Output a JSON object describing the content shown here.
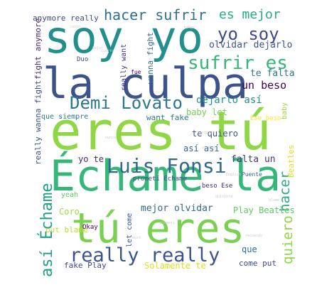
{
  "word_cloud": {
    "words": [
      {
        "text": "soy yo",
        "color": "#21908d"
      },
      {
        "text": "la culpa",
        "color": "#3b528b"
      },
      {
        "text": "eres tú",
        "color": "#8fd744"
      },
      {
        "text": "Échame la",
        "color": "#35b779"
      },
      {
        "text": "tú eres",
        "color": "#7ad151"
      },
      {
        "text": "Luis Fonsi",
        "color": "#31688e"
      },
      {
        "text": "Demi Lovato",
        "color": "#2a788e"
      },
      {
        "text": "really really",
        "color": "#3b528b"
      },
      {
        "text": "hacer sufrir",
        "color": "#2d708e"
      },
      {
        "text": "es mejor",
        "color": "#25ab82"
      },
      {
        "text": "yo soy",
        "color": "#3e4a89"
      },
      {
        "text": "sufrir es",
        "color": "#35b779"
      },
      {
        "text": "olvidar dejarlo",
        "color": "#3b528b"
      },
      {
        "text": "te falta",
        "color": "#2a788e"
      },
      {
        "text": "un beso",
        "color": "#440154"
      },
      {
        "text": "dejarlo así",
        "color": "#21908d"
      },
      {
        "text": "así Échame",
        "color": "#1f9e89"
      },
      {
        "text": "hacer",
        "color": "#27ad81"
      },
      {
        "text": "quiero",
        "color": "#8fd744"
      },
      {
        "text": "mejor olvidar",
        "color": "#31688e"
      },
      {
        "text": "falta un",
        "color": "#443983"
      },
      {
        "text": "así así",
        "color": "#31688e"
      },
      {
        "text": "te quiero",
        "color": "#3b528b"
      },
      {
        "text": "yo te",
        "color": "#482878"
      },
      {
        "text": "baby let",
        "color": "#75d054"
      },
      {
        "text": "want fake",
        "color": "#2a788e"
      },
      {
        "text": "Play Beatles",
        "color": "#5ec962"
      },
      {
        "text": "Coro",
        "color": "#a0da39"
      },
      {
        "text": "put blame",
        "color": "#bddf26"
      },
      {
        "text": "fake Play",
        "color": "#414487"
      },
      {
        "text": "Solamente te",
        "color": "#d8e219"
      },
      {
        "text": "come put",
        "color": "#3e4a89"
      },
      {
        "text": "que",
        "color": "#2c728e"
      },
      {
        "text": "anymore really",
        "color": "#3e4a89"
      },
      {
        "text": "wanna fight",
        "color": "#31688e"
      },
      {
        "text": "really want",
        "color": "#46337e"
      },
      {
        "text": "fight anymore",
        "color": "#482878"
      },
      {
        "text": "really wanna fight",
        "color": "#3b528b"
      },
      {
        "text": "que siempre",
        "color": "#2a788e"
      },
      {
        "text": "prometí Échame",
        "color": "#3e4a89"
      },
      {
        "text": "Duo",
        "color": "#3e4a89"
      },
      {
        "text": "yeah",
        "color": "#5ec962"
      },
      {
        "text": "beso Ese",
        "color": "#472d7b"
      },
      {
        "text": "Ese beso",
        "color": "#fde725"
      },
      {
        "text": "let come",
        "color": "#3b528b"
      },
      {
        "text": "Okay",
        "color": "#440154"
      },
      {
        "text": "Beatles",
        "color": "#dde318"
      },
      {
        "text": "baby",
        "color": "#a0da39"
      },
      {
        "text": "fue",
        "color": "#440154"
      },
      {
        "text": "Puente",
        "color": "#31688e"
      },
      {
        "text": "canto",
        "color": "#cccccc"
      },
      {
        "text": "tenga",
        "color": "#cccccc"
      },
      {
        "text": "cierto",
        "color": "#cccccc"
      },
      {
        "text": "historia",
        "color": "#cccccc"
      },
      {
        "text": "verdad",
        "color": "#cccccc"
      },
      {
        "text": "nunca",
        "color": "#cccccc"
      },
      {
        "text": "quisiera",
        "color": "#cccccc"
      },
      {
        "text": "English",
        "color": "#cccccc"
      },
      {
        "text": "must",
        "color": "#cccccc"
      },
      {
        "text": "blame",
        "color": "#cccccc"
      },
      {
        "text": "recuerdo",
        "color": "#cccccc"
      },
      {
        "text": "mejor",
        "color": "#cccccc"
      },
      {
        "text": "prometí",
        "color": "#cccccc"
      },
      {
        "text": "sé",
        "color": "#cccccc"
      }
    ]
  }
}
